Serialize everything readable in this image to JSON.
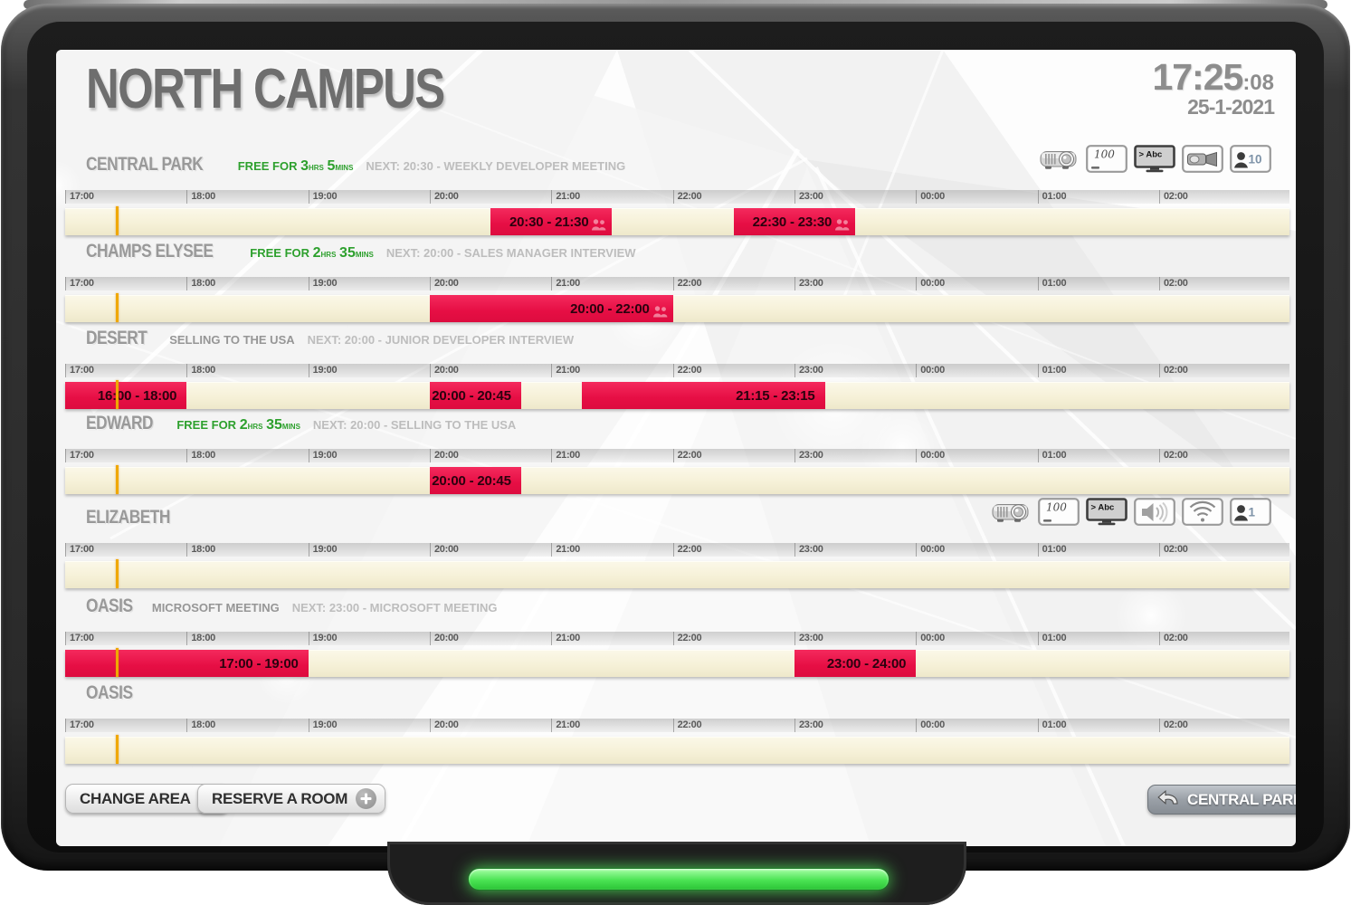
{
  "header": {
    "title": "NORTH CAMPUS",
    "time": "17:25",
    "seconds": ":08",
    "date": "25-1-2021"
  },
  "timeline": {
    "hours": [
      "17:00",
      "18:00",
      "19:00",
      "20:00",
      "21:00",
      "22:00",
      "23:00",
      "00:00",
      "01:00",
      "02:00"
    ]
  },
  "rooms": [
    {
      "name": "CENTRAL PARK",
      "status": {
        "type": "free",
        "prefix": "FREE FOR",
        "hours": "3",
        "hours_unit": "HRS",
        "mins": "5",
        "mins_unit": "MINS"
      },
      "next": "NEXT: 20:30 - WEEKLY DEVELOPER MEETING",
      "icons": [
        {
          "type": "projector"
        },
        {
          "type": "whiteboard",
          "label": "100"
        },
        {
          "type": "tv",
          "label": "> Abc"
        },
        {
          "type": "camera"
        },
        {
          "type": "capacity",
          "label": "10"
        }
      ],
      "bookings": [
        {
          "label": "20:30 - 21:30",
          "start": 20.5,
          "end": 21.5,
          "attendees_icon": true
        },
        {
          "label": "22:30 - 23:30",
          "start": 22.5,
          "end": 23.5,
          "attendees_icon": true
        }
      ]
    },
    {
      "name": "CHAMPS ELYSEE",
      "status": {
        "type": "free",
        "prefix": "FREE FOR",
        "hours": "2",
        "hours_unit": "HRS",
        "mins": "35",
        "mins_unit": "MINS"
      },
      "next": "NEXT: 20:00 - SALES MANAGER INTERVIEW",
      "icons": [],
      "bookings": [
        {
          "label": "20:00 - 22:00",
          "start": 20,
          "end": 22,
          "attendees_icon": true
        }
      ]
    },
    {
      "name": "DESERT",
      "status": {
        "type": "meeting",
        "label": "SELLING TO THE USA"
      },
      "next": "NEXT: 20:00 - JUNIOR DEVELOPER INTERVIEW",
      "icons": [],
      "bookings": [
        {
          "label": "16:00 - 18:00",
          "start": 16,
          "end": 18
        },
        {
          "label": "20:00 - 20:45",
          "start": 20,
          "end": 20.75
        },
        {
          "label": "21:15 - 23:15",
          "start": 21.25,
          "end": 23.25
        }
      ]
    },
    {
      "name": "EDWARD",
      "status": {
        "type": "free",
        "prefix": "FREE FOR",
        "hours": "2",
        "hours_unit": "HRS",
        "mins": "35",
        "mins_unit": "MINS"
      },
      "next": "NEXT: 20:00 - SELLING TO THE USA",
      "icons": [],
      "bookings": [
        {
          "label": "20:00 - 20:45",
          "start": 20,
          "end": 20.75
        }
      ]
    },
    {
      "name": "ELIZABETH",
      "status": null,
      "next": null,
      "icons": [
        {
          "type": "projector"
        },
        {
          "type": "whiteboard",
          "label": "100"
        },
        {
          "type": "tv",
          "label": "> Abc"
        },
        {
          "type": "speaker"
        },
        {
          "type": "wifi"
        },
        {
          "type": "capacity",
          "label": "1"
        }
      ],
      "bookings": []
    },
    {
      "name": "OASIS",
      "status": {
        "type": "meeting",
        "label": "MICROSOFT MEETING"
      },
      "next": "NEXT: 23:00 - MICROSOFT MEETING",
      "icons": [],
      "bookings": [
        {
          "label": "17:00 - 19:00",
          "start": 17,
          "end": 19
        },
        {
          "label": "23:00 - 24:00",
          "start": 23,
          "end": 24
        }
      ]
    },
    {
      "name": "OASIS",
      "status": null,
      "next": null,
      "icons": [],
      "bookings": []
    }
  ],
  "footer": {
    "change_area": "CHANGE AREA",
    "reserve_room": "RESERVE A ROOM",
    "selected_room": "CENTRAL PARK"
  },
  "colors": {
    "booking_red": "#e8164b",
    "free_green": "#2da02d",
    "now_line": "#f0a800",
    "timeline_bar": "#f8f4de",
    "led_green": "#4ae353"
  }
}
